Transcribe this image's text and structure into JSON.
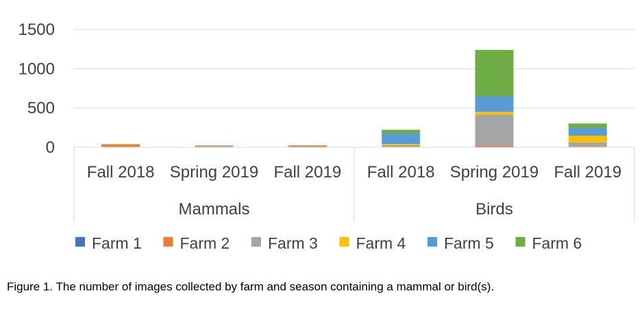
{
  "chart_data": {
    "type": "bar",
    "stacked": true,
    "title": "",
    "xlabel": "",
    "ylabel": "",
    "ylim": [
      0,
      1500
    ],
    "yticks": [
      "0",
      "500",
      "1000",
      "1500"
    ],
    "grid": true,
    "legend_position": "bottom",
    "groups": [
      {
        "label": "Mammals",
        "categories": [
          "Fall 2018",
          "Spring 2019",
          "Fall 2019"
        ]
      },
      {
        "label": "Birds",
        "categories": [
          "Fall 2018",
          "Spring 2019",
          "Fall 2019"
        ]
      }
    ],
    "series": [
      {
        "name": "Farm 1",
        "color": "#4472C4",
        "values": [
          5,
          2,
          2,
          3,
          10,
          3
        ]
      },
      {
        "name": "Farm 2",
        "color": "#ED7D31",
        "values": [
          25,
          10,
          15,
          5,
          15,
          5
        ]
      },
      {
        "name": "Farm 3",
        "color": "#A5A5A5",
        "values": [
          5,
          5,
          5,
          20,
          390,
          55
        ]
      },
      {
        "name": "Farm 4",
        "color": "#FFC000",
        "values": [
          5,
          2,
          2,
          15,
          35,
          85
        ]
      },
      {
        "name": "Farm 5",
        "color": "#5B9BD5",
        "values": [
          2,
          5,
          2,
          135,
          200,
          100
        ]
      },
      {
        "name": "Farm 6",
        "color": "#70AD47",
        "values": [
          2,
          2,
          1,
          45,
          590,
          55
        ]
      }
    ]
  },
  "caption": "Figure 1. The number of images collected by farm and season containing a mammal or bird(s)."
}
